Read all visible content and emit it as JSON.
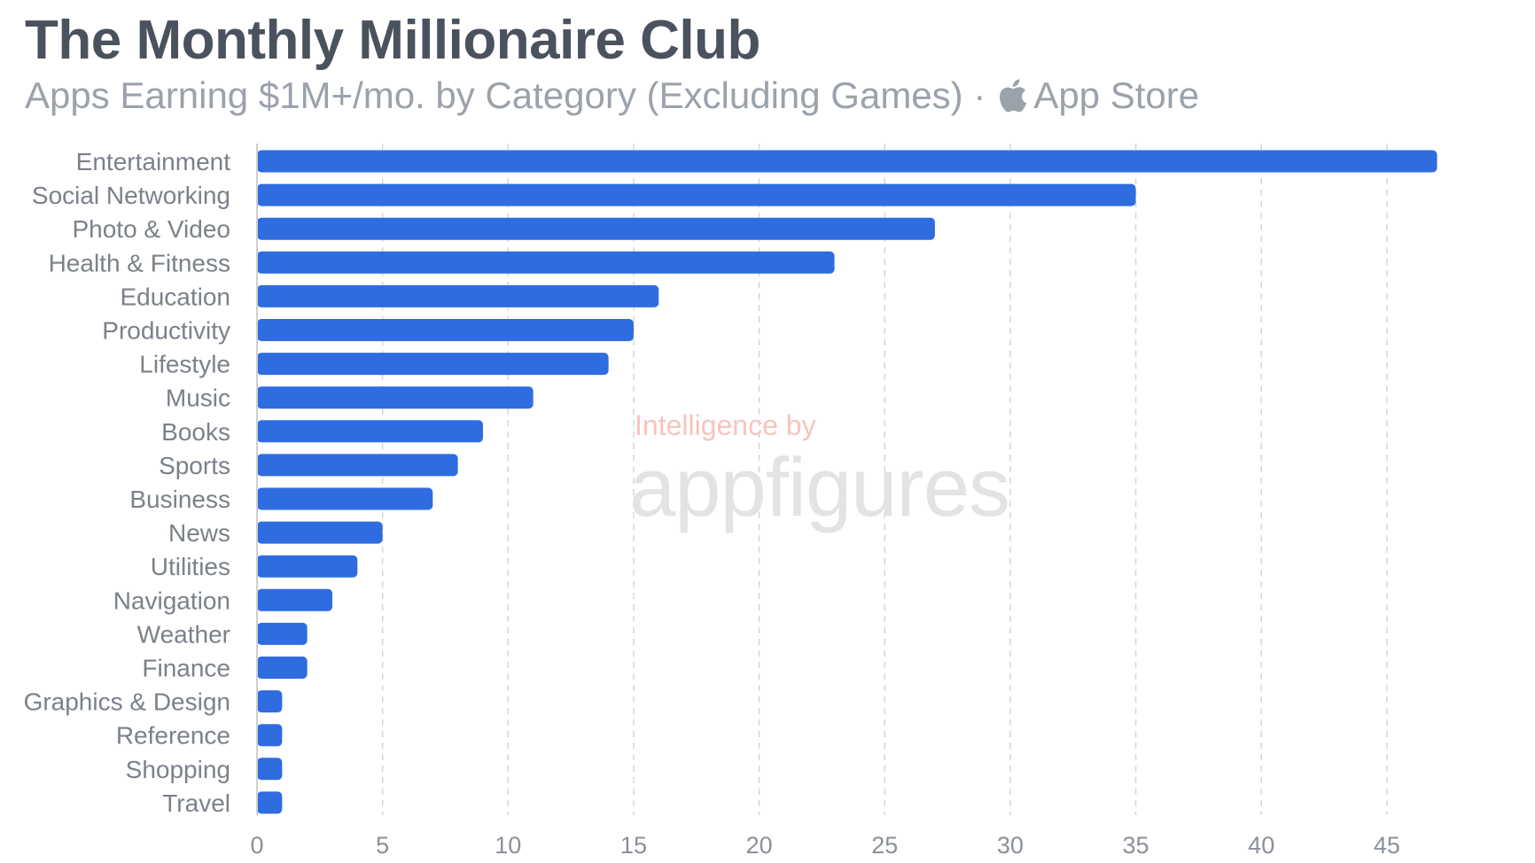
{
  "header": {
    "title": "The Monthly Millionaire Club",
    "subtitle_prefix": "Apps Earning $1M+/mo. by Category (Excluding Games) ·",
    "store_icon": "apple-icon",
    "store_label": "App Store"
  },
  "watermark": {
    "line1": "Intelligence by",
    "line2": "appfigures"
  },
  "colors": {
    "bar": "#2f6ce0",
    "grid": "#d6d6d6",
    "tick_text": "#8a9099",
    "label_text": "#7b818a"
  },
  "chart_data": {
    "type": "bar",
    "orientation": "horizontal",
    "title": "The Monthly Millionaire Club",
    "subtitle": "Apps Earning $1M+/mo. by Category (Excluding Games) · App Store",
    "xlabel": "",
    "ylabel": "",
    "xlim": [
      0,
      47
    ],
    "xticks": [
      0,
      5,
      10,
      15,
      20,
      25,
      30,
      35,
      40,
      45
    ],
    "grid": "vertical-dashed",
    "legend": "none",
    "categories": [
      "Entertainment",
      "Social Networking",
      "Photo & Video",
      "Health & Fitness",
      "Education",
      "Productivity",
      "Lifestyle",
      "Music",
      "Books",
      "Sports",
      "Business",
      "News",
      "Utilities",
      "Navigation",
      "Weather",
      "Finance",
      "Graphics & Design",
      "Reference",
      "Shopping",
      "Travel"
    ],
    "values": [
      47,
      35,
      27,
      23,
      16,
      15,
      14,
      11,
      9,
      8,
      7,
      5,
      4,
      3,
      2,
      2,
      1,
      1,
      1,
      1
    ]
  }
}
